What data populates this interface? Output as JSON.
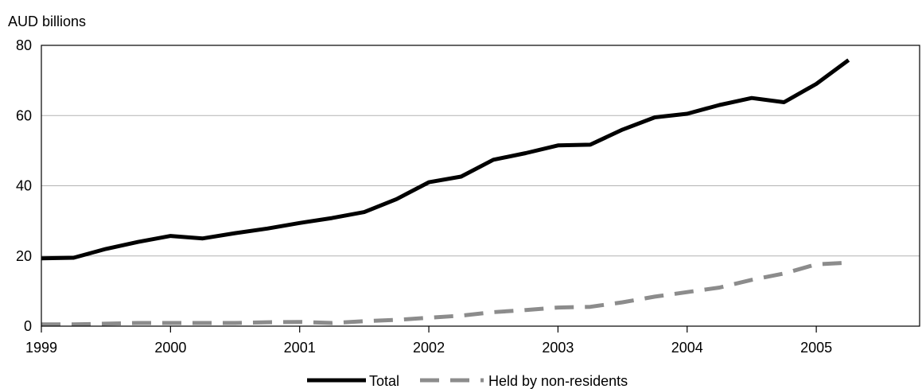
{
  "chart_data": {
    "type": "line",
    "ylabel": "AUD billions",
    "xlabel": "",
    "title": "",
    "ylim": [
      0,
      80
    ],
    "xlim": [
      1999,
      2005.8
    ],
    "y_ticks": [
      0,
      20,
      40,
      60,
      80
    ],
    "x_ticks": [
      1999,
      2000,
      2001,
      2002,
      2003,
      2004,
      2005
    ],
    "grid": "horizontal",
    "legend_position": "bottom",
    "series": [
      {
        "name": "Total",
        "color": "#000000",
        "style": "solid",
        "x": [
          1999.0,
          1999.25,
          1999.5,
          1999.75,
          2000.0,
          2000.25,
          2000.5,
          2000.75,
          2001.0,
          2001.25,
          2001.5,
          2001.75,
          2002.0,
          2002.25,
          2002.5,
          2002.75,
          2003.0,
          2003.25,
          2003.5,
          2003.75,
          2004.0,
          2004.25,
          2004.5,
          2004.75,
          2005.0,
          2005.25
        ],
        "values": [
          19.3,
          19.5,
          22,
          24,
          25.7,
          25,
          26.5,
          27.8,
          29.4,
          30.8,
          32.5,
          36.2,
          41,
          42.6,
          47.4,
          49.3,
          51.5,
          51.7,
          56,
          59.5,
          60.5,
          63,
          65,
          63.8,
          69,
          75.8
        ]
      },
      {
        "name": "Held by non-residents",
        "color": "#8c8c8c",
        "style": "dashed",
        "x": [
          1999.0,
          1999.25,
          1999.5,
          1999.75,
          2000.0,
          2000.25,
          2000.5,
          2000.75,
          2001.0,
          2001.25,
          2001.5,
          2001.75,
          2002.0,
          2002.25,
          2002.5,
          2002.75,
          2003.0,
          2003.25,
          2003.5,
          2003.75,
          2004.0,
          2004.25,
          2004.5,
          2004.75,
          2005.0,
          2005.25
        ],
        "values": [
          0.5,
          0.5,
          0.7,
          0.9,
          0.9,
          0.9,
          0.9,
          1.1,
          1.2,
          0.9,
          1.4,
          1.8,
          2.4,
          3,
          4,
          4.6,
          5.3,
          5.5,
          6.8,
          8.4,
          9.7,
          11,
          13.2,
          15,
          17.6,
          18.1
        ]
      }
    ]
  }
}
